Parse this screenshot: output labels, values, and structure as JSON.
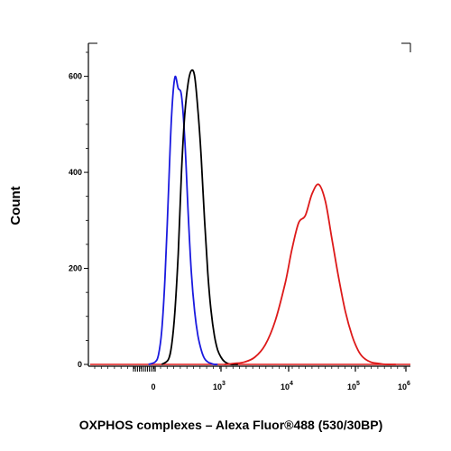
{
  "chart_data": {
    "type": "line",
    "title": "",
    "xlabel": "OXPHOS complexes – Alexa Fluor®488 (530/30BP)",
    "ylabel": "Count",
    "x_scale": "biexponential",
    "ylim": [
      0,
      650
    ],
    "grid": false,
    "legend": "none",
    "y_ticks": [
      {
        "value": 0,
        "label": "0"
      },
      {
        "value": 200,
        "label": "200"
      },
      {
        "value": 400,
        "label": "400"
      },
      {
        "value": 600,
        "label": "600"
      }
    ],
    "x_ticks": [
      {
        "value": "0",
        "label": "0",
        "sup": ""
      },
      {
        "value": "10^3",
        "label": "10",
        "sup": "3"
      },
      {
        "value": "10^4",
        "label": "10",
        "sup": "4"
      },
      {
        "value": "10^5",
        "label": "10",
        "sup": "5"
      },
      {
        "value": "10^6",
        "label": "10",
        "sup": "6"
      }
    ],
    "series": [
      {
        "color": "#1a1adf",
        "x": [
          -0.1,
          0.0,
          0.05,
          0.1,
          0.15,
          0.2,
          0.25,
          0.3,
          0.35,
          0.4,
          0.45,
          0.5,
          0.55,
          0.6,
          0.65,
          0.7,
          0.75,
          0.8,
          0.85,
          0.9,
          0.95
        ],
        "y": [
          0,
          5,
          20,
          70,
          180,
          350,
          520,
          598,
          575,
          560,
          470,
          320,
          190,
          110,
          60,
          30,
          12,
          5,
          2,
          0,
          0
        ]
      },
      {
        "color": "#000000",
        "x": [
          0.1,
          0.2,
          0.25,
          0.3,
          0.35,
          0.4,
          0.45,
          0.5,
          0.55,
          0.6,
          0.65,
          0.7,
          0.75,
          0.8,
          0.85,
          0.9,
          0.95,
          1.0,
          1.05,
          1.1,
          1.15,
          1.2,
          1.25
        ],
        "y": [
          0,
          10,
          40,
          110,
          230,
          400,
          520,
          585,
          612,
          600,
          530,
          430,
          300,
          190,
          110,
          60,
          30,
          15,
          6,
          2,
          0,
          0,
          0
        ]
      },
      {
        "color": "#dd1a1a",
        "x": [
          1.05,
          1.2,
          1.35,
          1.5,
          1.65,
          1.8,
          1.95,
          2.05,
          2.15,
          2.25,
          2.35,
          2.45,
          2.55,
          2.65,
          2.75,
          2.85,
          2.95,
          3.05,
          3.15,
          3.3,
          3.45,
          3.6,
          3.8
        ],
        "y": [
          0,
          2,
          5,
          15,
          40,
          90,
          170,
          240,
          295,
          310,
          355,
          375,
          340,
          260,
          180,
          110,
          60,
          30,
          15,
          5,
          2,
          0,
          0
        ]
      }
    ]
  }
}
